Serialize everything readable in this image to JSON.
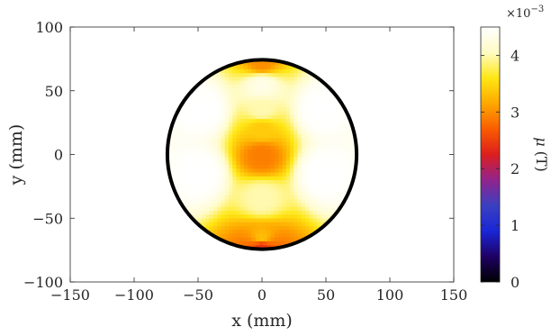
{
  "chart_data": {
    "type": "heatmap",
    "xlabel": "x (mm)",
    "ylabel": "y (mm)",
    "xlim": [
      -150,
      150
    ],
    "ylim": [
      -100,
      100
    ],
    "x_ticks": [
      -150,
      -100,
      -50,
      0,
      50,
      100,
      150
    ],
    "y_ticks": [
      -100,
      -50,
      0,
      50,
      100
    ],
    "x_tick_labels": [
      "−150",
      "−100",
      "−50",
      "0",
      "50",
      "100",
      "150"
    ],
    "y_tick_labels": [
      "−100",
      "−50",
      "0",
      "50",
      "100"
    ],
    "aspect": "equal",
    "grid": false,
    "disk": {
      "center_mm": [
        0,
        0
      ],
      "radius_mm": 74,
      "outline_color": "#000000",
      "value_samples": [
        {
          "x": 0,
          "y": 0,
          "value": 0.0029
        },
        {
          "x": 0,
          "y": 20,
          "value": 0.0034
        },
        {
          "x": 0,
          "y": 35,
          "value": 0.004
        },
        {
          "x": 0,
          "y": 55,
          "value": 0.0043
        },
        {
          "x": 0,
          "y": -35,
          "value": 0.004
        },
        {
          "x": -45,
          "y": 35,
          "value": 0.0045
        },
        {
          "x": 45,
          "y": 35,
          "value": 0.0045
        },
        {
          "x": -48,
          "y": -15,
          "value": 0.0045
        },
        {
          "x": 48,
          "y": -15,
          "value": 0.0045
        },
        {
          "x": 0,
          "y": -66,
          "value": 0.0033
        },
        {
          "x": 0,
          "y": -72,
          "value": 0.0024
        },
        {
          "x": 0,
          "y": 72,
          "value": 0.003
        }
      ]
    },
    "colorbar": {
      "label": "μ (T)",
      "label_symbol": "μ",
      "label_unit": "(T)",
      "range": [
        0,
        0.0045
      ],
      "ticks": [
        0,
        1,
        2,
        3,
        4
      ],
      "tick_labels": [
        "0",
        "1",
        "2",
        "3",
        "4"
      ],
      "scale_factor_base": "×10",
      "scale_factor_exponent": "−3",
      "colormap": "hot-like",
      "colormap_stops": [
        "#000000",
        "#1e0065",
        "#1a26d6",
        "#3a40c0",
        "#92238c",
        "#dd1e1e",
        "#fa5c00",
        "#fea800",
        "#ffe714",
        "#fffbc4",
        "#ffffff"
      ]
    }
  }
}
